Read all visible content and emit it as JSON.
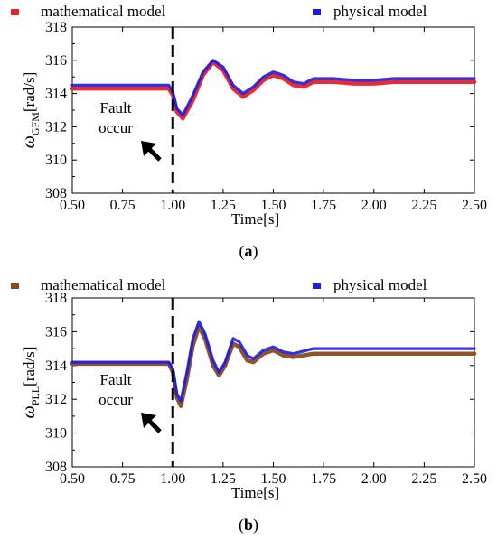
{
  "chart_data": [
    {
      "type": "line",
      "panel_label": "a",
      "ylabel_symbol": "ω",
      "ylabel_subscript": "GFM",
      "ylabel_unit": "[rad/s]",
      "xlabel": "Time[s]",
      "xlim": [
        0.5,
        2.5
      ],
      "ylim": [
        308,
        318
      ],
      "x_ticks": [
        "0.50",
        "0.75",
        "1.00",
        "1.25",
        "1.50",
        "1.75",
        "2.00",
        "2.25",
        "2.50"
      ],
      "y_ticks": [
        "308",
        "310",
        "312",
        "314",
        "316",
        "318"
      ],
      "grid": false,
      "legend_position": "top",
      "fault_time": 1.0,
      "annotation": [
        "Fault",
        "occur"
      ],
      "series": [
        {
          "name": "mathematical model",
          "color": "#e8202a",
          "x": [
            0.5,
            0.98,
            1.0,
            1.02,
            1.05,
            1.1,
            1.15,
            1.2,
            1.25,
            1.3,
            1.35,
            1.4,
            1.45,
            1.5,
            1.55,
            1.6,
            1.65,
            1.7,
            1.8,
            1.9,
            2.0,
            2.1,
            2.2,
            2.5
          ],
          "values": [
            314.3,
            314.3,
            313.9,
            312.9,
            312.5,
            313.6,
            315.1,
            315.9,
            315.4,
            314.3,
            313.8,
            314.2,
            314.8,
            315.1,
            314.9,
            314.5,
            314.4,
            314.7,
            314.7,
            314.6,
            314.6,
            314.7,
            314.7,
            314.7
          ]
        },
        {
          "name": "physical  model",
          "color": "#1a1ae6",
          "x": [
            0.5,
            0.98,
            1.0,
            1.02,
            1.05,
            1.1,
            1.15,
            1.2,
            1.25,
            1.3,
            1.35,
            1.4,
            1.45,
            1.5,
            1.55,
            1.6,
            1.65,
            1.7,
            1.8,
            1.9,
            2.0,
            2.1,
            2.2,
            2.5
          ],
          "values": [
            314.5,
            314.5,
            314.1,
            313.1,
            312.7,
            313.9,
            315.3,
            316.0,
            315.6,
            314.5,
            314.0,
            314.4,
            315.0,
            315.3,
            315.1,
            314.7,
            314.6,
            314.9,
            314.9,
            314.8,
            314.8,
            314.9,
            314.9,
            314.9
          ]
        }
      ]
    },
    {
      "type": "line",
      "panel_label": "b",
      "ylabel_symbol": "ω",
      "ylabel_subscript": "PLL",
      "ylabel_unit": "[rad/s]",
      "xlabel": "Time[s]",
      "xlim": [
        0.5,
        2.5
      ],
      "ylim": [
        308,
        318
      ],
      "x_ticks": [
        "0.50",
        "0.75",
        "1.00",
        "1.25",
        "1.50",
        "1.75",
        "2.00",
        "2.25",
        "2.50"
      ],
      "y_ticks": [
        "308",
        "310",
        "312",
        "314",
        "316",
        "318"
      ],
      "grid": false,
      "legend_position": "top",
      "fault_time": 1.0,
      "annotation": [
        "Fault",
        "occur"
      ],
      "series": [
        {
          "name": "mathematical model",
          "color": "#8b4a1e",
          "x": [
            0.5,
            0.98,
            1.0,
            1.02,
            1.04,
            1.07,
            1.1,
            1.13,
            1.16,
            1.2,
            1.23,
            1.26,
            1.3,
            1.33,
            1.37,
            1.4,
            1.45,
            1.5,
            1.55,
            1.6,
            1.7,
            1.8,
            2.0,
            2.5
          ],
          "values": [
            314.1,
            314.1,
            313.6,
            312.1,
            311.6,
            313.2,
            315.2,
            316.3,
            315.6,
            314.0,
            313.4,
            314.0,
            315.3,
            315.1,
            314.3,
            314.2,
            314.7,
            314.9,
            314.6,
            314.5,
            314.7,
            314.7,
            314.7,
            314.7
          ]
        },
        {
          "name": "physical  model",
          "color": "#1a1ae6",
          "x": [
            0.5,
            0.98,
            1.0,
            1.02,
            1.04,
            1.07,
            1.1,
            1.13,
            1.16,
            1.2,
            1.23,
            1.26,
            1.3,
            1.33,
            1.37,
            1.4,
            1.45,
            1.5,
            1.55,
            1.6,
            1.7,
            1.8,
            2.0,
            2.5
          ],
          "values": [
            314.2,
            314.2,
            313.8,
            312.3,
            311.9,
            313.6,
            315.6,
            316.6,
            315.9,
            314.3,
            313.6,
            314.2,
            315.6,
            315.4,
            314.6,
            314.4,
            314.9,
            315.1,
            314.8,
            314.7,
            315.0,
            315.0,
            315.0,
            315.0
          ]
        }
      ]
    }
  ]
}
